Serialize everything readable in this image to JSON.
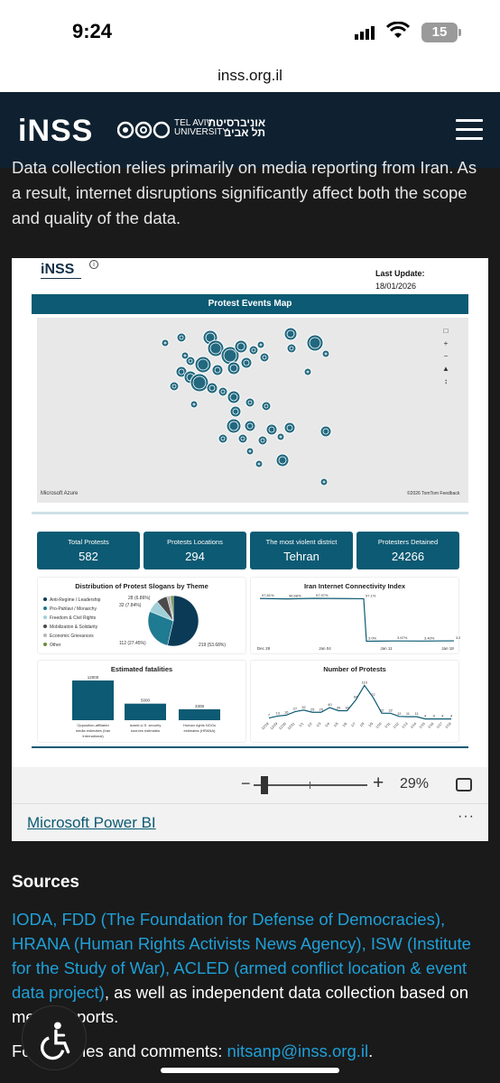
{
  "status": {
    "time": "9:24",
    "battery": "15"
  },
  "browser": {
    "url": "inss.org.il"
  },
  "site": {
    "logo": "iNSS",
    "tau_en_line1": "TEL AVIV",
    "tau_en_line2": "UNIVERSITY",
    "tau_he_line1": "אוניברסיטת",
    "tau_he_line2": "תל אביב"
  },
  "intro_text": "Data collection relies primarily on media reporting from Iran. As a result, internet disruptions significantly affect both the scope and quality of the data.",
  "report": {
    "logo": "iNSS",
    "last_update_label": "Last Update:",
    "last_update_value": "18/01/2026",
    "map_title": "Protest Events Map",
    "map_footer_left": "Microsoft Azure",
    "map_footer_right": "©2026 TomTom Feedback",
    "kpis": [
      {
        "label": "Total Protests",
        "value": "582"
      },
      {
        "label": "Protests Locations",
        "value": "294"
      },
      {
        "label": "The most violent district",
        "value": "Tehran"
      },
      {
        "label": "Protesters Detained",
        "value": "24266"
      }
    ],
    "pie": {
      "title": "Distribution of Protest Slogans by Theme",
      "legend": [
        "Anti-Regime / Leadership",
        "Pro-Pahlavi / Monarchy",
        "Freedom & Civil Rights",
        "Mobilization & Solidarity",
        "Economic Grievances",
        "Other"
      ],
      "labels": [
        "28 (6.86%)",
        "32 (7.84%)",
        "112 (27.45%)",
        "219 (53.68%)"
      ]
    },
    "fatalities": {
      "title": "Estimated fatalities"
    },
    "connectivity": {
      "title": "Iran Internet Connectivity Index"
    },
    "protests_chart": {
      "title": "Number of Protests"
    }
  },
  "chart_data": [
    {
      "type": "pie",
      "title": "Distribution of Protest Slogans by Theme",
      "categories": [
        "Anti-Regime / Leadership",
        "Pro-Pahlavi / Monarchy",
        "Freedom & Civil Rights",
        "Mobilization & Solidarity",
        "Economic Grievances",
        "Other"
      ],
      "values": [
        219,
        112,
        32,
        28,
        10,
        7
      ],
      "colors": [
        "#0b3a57",
        "#1f7b91",
        "#9fcfd9",
        "#4a4a4a",
        "#b6b6b6",
        "#6a8e3a"
      ]
    },
    {
      "type": "bar",
      "title": "Estimated fatalities",
      "categories": [
        "Opposition-affiliated media estimates (Iran International)",
        "Israeli-U.S. security sources estimates",
        "Human rights NGOs estimates (HRANA)"
      ],
      "values": [
        12000,
        5000,
        3308
      ],
      "ylim": [
        0,
        12000
      ]
    },
    {
      "type": "line",
      "title": "Iran Internet Connectivity Index",
      "x_ticks": [
        "Dec 28",
        "Jan 04",
        "Jan 11",
        "Jan 18"
      ],
      "point_labels": [
        "97.81%",
        "96.68%",
        "97.97%",
        "97.1%",
        "3.0%",
        "3.67%",
        "3.40%",
        "3.85%"
      ],
      "values": [
        97.81,
        96.68,
        97.97,
        97.1,
        3.0,
        3.67,
        3.4,
        3.85
      ],
      "ylim": [
        0,
        100
      ]
    },
    {
      "type": "line",
      "title": "Number of Protests",
      "x": [
        "12/28",
        "12/29",
        "12/30",
        "12/31",
        "1/1",
        "1/2",
        "1/3",
        "1/4",
        "1/5",
        "1/6",
        "1/7",
        "1/8",
        "1/9",
        "1/10",
        "1/11",
        "1/12",
        "1/13",
        "1/14",
        "1/15",
        "1/16",
        "1/17",
        "1/18"
      ],
      "values": [
        7,
        13,
        16,
        27,
        32,
        25,
        25,
        40,
        30,
        30,
        64,
        110,
        72,
        22,
        22,
        12,
        11,
        11,
        4,
        4,
        4,
        4
      ],
      "ylim": [
        0,
        120
      ]
    }
  ],
  "zoom": {
    "percent": "29%"
  },
  "powerbi": {
    "link": "Microsoft Power BI",
    "more": "···"
  },
  "sources": {
    "heading": "Sources",
    "links": "IODA, FDD (The Foundation for Defense of Democracies), HRANA  (Human Rights Activists News Agency), ISW (Institute for the Study of War), ACLED (armed conflict location & event data project)",
    "rest": ", as well as independent data collection based on media reports.",
    "contact_prefix": "For inquiries and comments: ",
    "contact_email": "nitsanp@inss.org.il",
    "contact_suffix": "."
  }
}
